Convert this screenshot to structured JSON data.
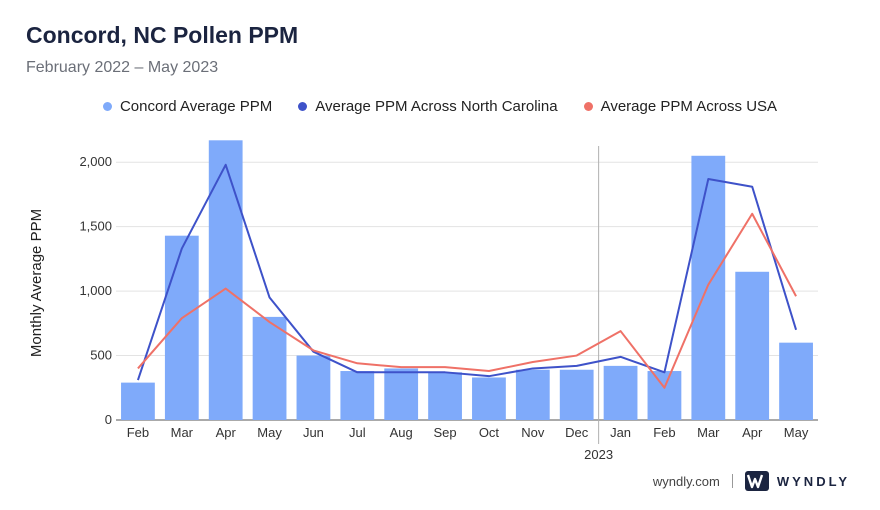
{
  "header": {
    "title": "Concord, NC Pollen PPM",
    "subtitle": "February 2022 – May 2023"
  },
  "footer": {
    "site": "wyndly.com",
    "brand": "WYNDLY"
  },
  "colors": {
    "bar": "#7faafa",
    "nc_line": "#3e52c9",
    "usa_line": "#ef7167",
    "grid": "#e3e3e3",
    "divider": "#b0b0b0"
  },
  "chart_data": {
    "type": "bar",
    "title": "Concord, NC Pollen PPM",
    "subtitle": "February 2022 – May 2023",
    "ylabel": "Monthly Average PPM",
    "xlabel": "",
    "ylim": [
      0,
      2250
    ],
    "yticks": [
      0,
      500,
      1000,
      1500,
      2000
    ],
    "ytick_labels": [
      "0",
      "500",
      "1,000",
      "1,500",
      "2,000"
    ],
    "grid": true,
    "legend_position": "top-center",
    "categories": [
      "Feb",
      "Mar",
      "Apr",
      "May",
      "Jun",
      "Jul",
      "Aug",
      "Sep",
      "Oct",
      "Nov",
      "Dec",
      "Jan",
      "Feb",
      "Mar",
      "Apr",
      "May"
    ],
    "year_divider": {
      "before_index": 11,
      "label": "2023"
    },
    "series": [
      {
        "name": "Concord Average PPM",
        "kind": "bar",
        "values": [
          290,
          1430,
          2170,
          800,
          500,
          380,
          400,
          370,
          330,
          390,
          390,
          420,
          380,
          2050,
          1150,
          600
        ]
      },
      {
        "name": "Average PPM Across North Carolina",
        "kind": "line",
        "values": [
          310,
          1330,
          1980,
          950,
          530,
          370,
          370,
          370,
          340,
          400,
          420,
          490,
          370,
          1870,
          1810,
          700
        ]
      },
      {
        "name": "Average PPM Across USA",
        "kind": "line",
        "values": [
          400,
          790,
          1020,
          760,
          540,
          440,
          410,
          410,
          380,
          450,
          500,
          690,
          250,
          1050,
          1600,
          960
        ]
      }
    ]
  }
}
